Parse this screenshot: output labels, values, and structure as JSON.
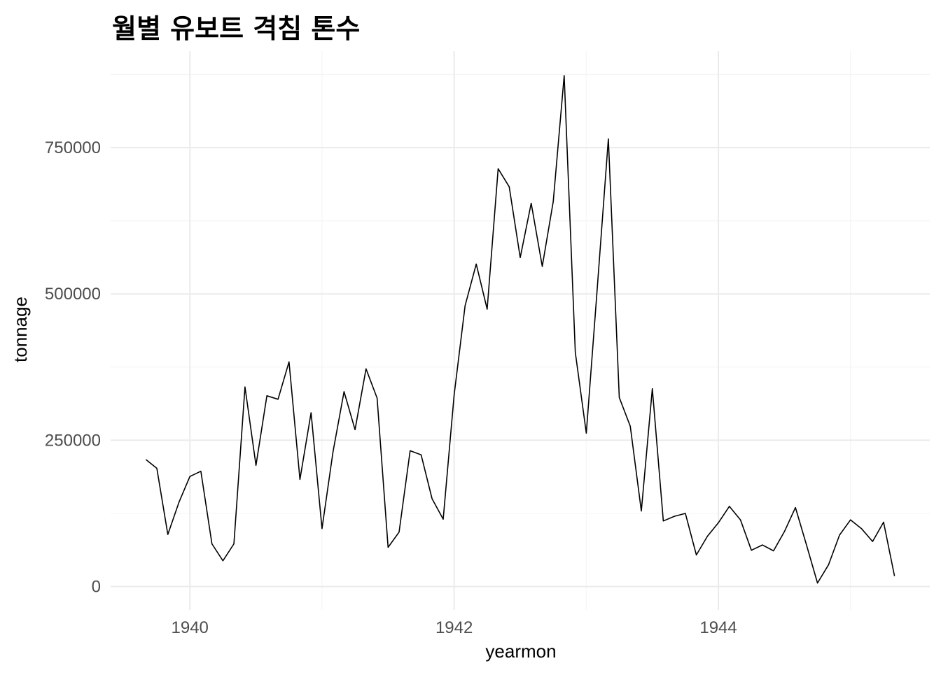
{
  "chart_data": {
    "type": "line",
    "title": "월별 유보트 격침 톤수",
    "xlabel": "yearmon",
    "ylabel": "tonnage",
    "xlim": [
      1939.4,
      1945.6
    ],
    "ylim": [
      -40000,
      915000
    ],
    "x_ticks": [
      {
        "value": 1940,
        "label": "1940"
      },
      {
        "value": 1942,
        "label": "1942"
      },
      {
        "value": 1944,
        "label": "1944"
      }
    ],
    "x_minor_ticks": [
      1941,
      1943,
      1945
    ],
    "y_ticks": [
      {
        "value": 0,
        "label": "0"
      },
      {
        "value": 250000,
        "label": "250000"
      },
      {
        "value": 500000,
        "label": "500000"
      },
      {
        "value": 750000,
        "label": "750000"
      }
    ],
    "y_minor_ticks": [
      125000,
      375000,
      625000,
      875000
    ],
    "grid": true,
    "colors": {
      "line": "#000000",
      "grid_major": "#ebebeb",
      "grid_minor": "#f5f5f5",
      "tick_text": "#4d4d4d"
    },
    "series": [
      {
        "x": [
          1939.667,
          1939.75,
          1939.833,
          1939.917,
          1940.0,
          1940.083,
          1940.167,
          1940.25,
          1940.333,
          1940.417,
          1940.5,
          1940.583,
          1940.667,
          1940.75,
          1940.833,
          1940.917,
          1941.0,
          1941.083,
          1941.167,
          1941.25,
          1941.333,
          1941.417,
          1941.5,
          1941.583,
          1941.667,
          1941.75,
          1941.833,
          1941.917,
          1942.0,
          1942.083,
          1942.167,
          1942.25,
          1942.333,
          1942.417,
          1942.5,
          1942.583,
          1942.667,
          1942.75,
          1942.833,
          1942.917,
          1943.0,
          1943.083,
          1943.167,
          1943.25,
          1943.333,
          1943.417,
          1943.5,
          1943.583,
          1943.667,
          1943.75,
          1943.833,
          1943.917,
          1944.0,
          1944.083,
          1944.167,
          1944.25,
          1944.333,
          1944.417,
          1944.5,
          1944.583,
          1944.667,
          1944.75,
          1944.833,
          1944.917,
          1945.0,
          1945.083,
          1945.167,
          1945.25,
          1945.333
        ],
        "values": [
          217000,
          202000,
          89000,
          144000,
          188000,
          197000,
          73000,
          44000,
          73000,
          341000,
          207000,
          326000,
          320000,
          384000,
          183000,
          297000,
          99000,
          230000,
          333000,
          268000,
          372000,
          322000,
          67000,
          93000,
          232000,
          225000,
          150000,
          115000,
          327000,
          480000,
          551000,
          474000,
          714000,
          683000,
          562000,
          655000,
          547000,
          658000,
          873000,
          400000,
          262000,
          509000,
          765000,
          323000,
          274000,
          129000,
          338000,
          112000,
          120000,
          125000,
          54000,
          86000,
          109000,
          137000,
          114000,
          62000,
          71000,
          61000,
          94000,
          135000,
          71000,
          6000,
          37000,
          88000,
          114000,
          99000,
          77000,
          110000,
          18000
        ]
      }
    ]
  }
}
